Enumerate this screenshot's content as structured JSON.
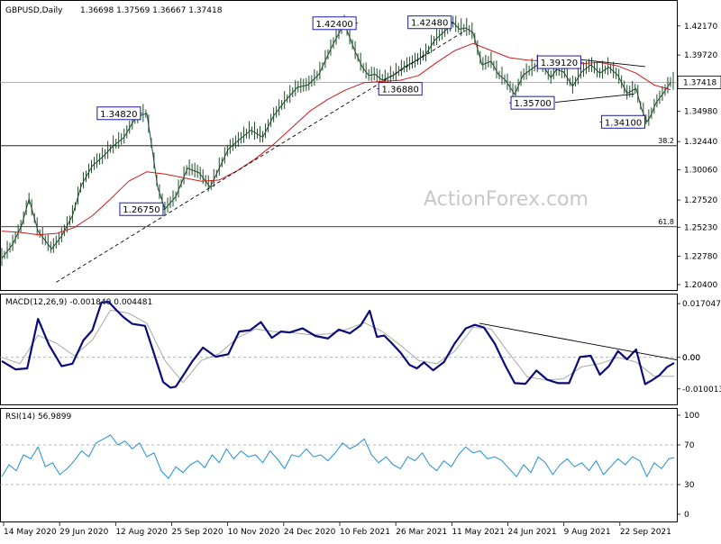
{
  "chart_data": [
    {
      "type": "line",
      "subtype": "candlestick-approximation",
      "title": "GBPUSD,Daily",
      "ohlc_text": "1.36698 1.37569 1.36667 1.37418",
      "ylim": [
        1.204,
        1.439
      ],
      "y_ticks": [
        "1.42170",
        "1.39720",
        "1.37418",
        "1.34980",
        "1.32440",
        "1.30060",
        "1.27520",
        "1.25230",
        "1.22780",
        "1.20400"
      ],
      "y_tick_values": [
        1.4217,
        1.3972,
        1.37418,
        1.3498,
        1.3244,
        1.3006,
        1.2752,
        1.2523,
        1.2278,
        1.204
      ],
      "current_price_label": "1.37418",
      "x_ticks": [
        "14 May 2020",
        "29 Jun 2020",
        "12 Aug 2020",
        "25 Sep 2020",
        "10 Nov 2020",
        "24 Dec 2020",
        "10 Feb 2021",
        "26 Mar 2021",
        "11 May 2021",
        "24 Jun 2021",
        "9 Aug 2021",
        "22 Sep 2021"
      ],
      "price_series": {
        "t": [
          0,
          12,
          22,
          30,
          40,
          55,
          66,
          78,
          88,
          100,
          112,
          122,
          135,
          148,
          160,
          166,
          172,
          180,
          192,
          205,
          218,
          230,
          240,
          250,
          262,
          275,
          288,
          300,
          312,
          326,
          338,
          350,
          364,
          378,
          390,
          398,
          405,
          412,
          420,
          432,
          444,
          456,
          468,
          478,
          490,
          498,
          505,
          512,
          520,
          530,
          540,
          548,
          556,
          566,
          575,
          584,
          595,
          606,
          612,
          620,
          630,
          640,
          650,
          660,
          670,
          680,
          690,
          700,
          706,
          712,
          716,
          722,
          730,
          738
        ],
        "v": [
          1.226,
          1.238,
          1.254,
          1.276,
          1.249,
          1.234,
          1.245,
          1.262,
          1.288,
          1.304,
          1.312,
          1.32,
          1.328,
          1.345,
          1.3482,
          1.318,
          1.286,
          1.2675,
          1.278,
          1.302,
          1.298,
          1.286,
          1.302,
          1.318,
          1.326,
          1.334,
          1.328,
          1.346,
          1.358,
          1.37,
          1.372,
          1.381,
          1.404,
          1.424,
          1.4,
          1.387,
          1.38,
          1.381,
          1.376,
          1.38,
          1.387,
          1.392,
          1.398,
          1.41,
          1.418,
          1.4248,
          1.419,
          1.42,
          1.416,
          1.389,
          1.392,
          1.381,
          1.376,
          1.364,
          1.38,
          1.385,
          1.391,
          1.378,
          1.385,
          1.383,
          1.371,
          1.383,
          1.389,
          1.382,
          1.387,
          1.38,
          1.365,
          1.369,
          1.352,
          1.341,
          1.346,
          1.357,
          1.365,
          1.3742
        ]
      },
      "ma_series": {
        "t": [
          0,
          20,
          40,
          60,
          80,
          100,
          120,
          140,
          160,
          180,
          200,
          220,
          240,
          260,
          280,
          300,
          320,
          340,
          360,
          380,
          400,
          420,
          440,
          460,
          480,
          500,
          520,
          540,
          560,
          580,
          600,
          620,
          640,
          660,
          680,
          700,
          720,
          738
        ],
        "v": [
          1.249,
          1.248,
          1.246,
          1.247,
          1.252,
          1.262,
          1.276,
          1.291,
          1.299,
          1.297,
          1.294,
          1.291,
          1.292,
          1.3,
          1.31,
          1.322,
          1.336,
          1.35,
          1.36,
          1.368,
          1.374,
          1.375,
          1.376,
          1.38,
          1.391,
          1.401,
          1.407,
          1.401,
          1.395,
          1.393,
          1.392,
          1.39,
          1.39,
          1.391,
          1.388,
          1.382,
          1.372,
          1.368
        ]
      },
      "callouts": [
        {
          "label": "1.42400",
          "t": 393,
          "v": 1.424,
          "side": "left"
        },
        {
          "label": "1.42480",
          "t": 498,
          "v": 1.4248,
          "side": "left"
        },
        {
          "label": "1.39120",
          "t": 641,
          "v": 1.3912,
          "side": "left"
        },
        {
          "label": "1.36880",
          "t": 414,
          "v": 1.3688,
          "side": "right"
        },
        {
          "label": "1.35700",
          "t": 560,
          "v": 1.357,
          "side": "right"
        },
        {
          "label": "1.34820",
          "t": 155,
          "v": 1.3482,
          "side": "left"
        },
        {
          "label": "1.34100",
          "t": 660,
          "v": 1.341,
          "side": "right"
        },
        {
          "label": "1.26750",
          "t": 180,
          "v": 1.2675,
          "side": "left"
        }
      ],
      "fib_levels": [
        {
          "label": "38.2",
          "value": 1.3209
        },
        {
          "label": "61.8",
          "value": 1.2527
        }
      ],
      "trend_lines": [
        {
          "style": "dashed",
          "from": {
            "t": 60,
            "v": 1.206
          },
          "to": {
            "t": 512,
            "v": 1.418
          }
        },
        {
          "style": "solid",
          "from": {
            "t": 625,
            "v": 1.3945
          },
          "to": {
            "t": 710,
            "v": 1.3875
          }
        },
        {
          "style": "solid",
          "from": {
            "t": 611,
            "v": 1.3575
          },
          "to": {
            "t": 698,
            "v": 1.3645
          }
        }
      ],
      "watermark": "ActionForex.com"
    },
    {
      "type": "line",
      "title": "MACD(12,26,9) -0.001840 0.004481",
      "ylim": [
        -0.0135,
        0.0185
      ],
      "y_ticks": [
        "0.017047",
        "0.00",
        "-0.010013"
      ],
      "y_tick_values": [
        0.017047,
        0.0,
        -0.010013
      ],
      "zero_line_labels": [
        "0.00",
        "0.00"
      ],
      "series": [
        {
          "role": "macd",
          "t": [
            0,
            15,
            28,
            40,
            52,
            66,
            78,
            90,
            100,
            110,
            118,
            126,
            134,
            144,
            158,
            168,
            178,
            186,
            192,
            200,
            210,
            222,
            236,
            250,
            262,
            274,
            286,
            298,
            308,
            318,
            332,
            346,
            360,
            372,
            384,
            396,
            406,
            414,
            422,
            430,
            440,
            450,
            458,
            466,
            476,
            488,
            500,
            512,
            522,
            532,
            544,
            556,
            566,
            578,
            590,
            602,
            614,
            626,
            638,
            650,
            660,
            670,
            680,
            690,
            700,
            710,
            718,
            726,
            734,
            742
          ],
          "v": [
            -0.0012,
            -0.0038,
            -0.0035,
            0.0122,
            0.004,
            -0.0028,
            -0.002,
            0.0054,
            0.0086,
            0.0174,
            0.0176,
            0.0151,
            0.0128,
            0.0106,
            0.01,
            0.0012,
            -0.0078,
            -0.0096,
            -0.0093,
            -0.0058,
            -0.0014,
            0.0031,
            0.0002,
            0.001,
            0.0082,
            0.0086,
            0.0112,
            0.0062,
            0.0082,
            0.0079,
            0.0092,
            0.0068,
            0.006,
            0.0088,
            0.0076,
            0.0101,
            0.0148,
            0.0065,
            0.0069,
            0.0046,
            0.0015,
            -0.0024,
            -0.0035,
            -0.0016,
            -0.0041,
            -0.0015,
            0.0045,
            0.0092,
            0.0103,
            0.0095,
            0.0044,
            -0.0028,
            -0.0082,
            -0.0084,
            -0.0042,
            -0.0071,
            -0.0082,
            -0.0082,
            0.0001,
            0.0005,
            -0.0055,
            -0.0028,
            0.002,
            -0.0006,
            0.0025,
            -0.0085,
            -0.0072,
            -0.0056,
            -0.0031,
            -0.0018
          ]
        },
        {
          "role": "signal",
          "t": [
            0,
            20,
            40,
            60,
            80,
            100,
            120,
            140,
            160,
            180,
            200,
            220,
            240,
            260,
            280,
            300,
            320,
            340,
            360,
            380,
            400,
            420,
            440,
            460,
            480,
            500,
            520,
            540,
            560,
            580,
            600,
            620,
            640,
            660,
            680,
            700,
            720,
            742
          ],
          "v": [
            0.0,
            -0.002,
            0.007,
            0.0045,
            0.0005,
            0.0055,
            0.015,
            0.014,
            0.0108,
            -0.001,
            -0.008,
            -0.001,
            0.0012,
            0.0062,
            0.009,
            0.0082,
            0.0078,
            0.0072,
            0.0074,
            0.0088,
            0.011,
            0.0082,
            0.0038,
            -0.001,
            -0.002,
            0.002,
            0.0095,
            0.009,
            0.0012,
            -0.0062,
            -0.0072,
            -0.0068,
            -0.003,
            -0.002,
            0.0,
            -0.0015,
            -0.006,
            -0.006
          ]
        }
      ],
      "trend_lines": [
        {
          "style": "solid",
          "from": {
            "t": 527,
            "v": 0.0108
          },
          "to": {
            "t": 745,
            "v": -0.0008
          }
        }
      ]
    },
    {
      "type": "line",
      "title": "RSI(14) 56.9899",
      "ylim": [
        0,
        100
      ],
      "y_ticks": [
        "100",
        "70",
        "30",
        "0"
      ],
      "y_tick_values": [
        100,
        70,
        30,
        0
      ],
      "levels": [
        70,
        30
      ],
      "series": [
        {
          "role": "rsi",
          "t": [
            0,
            8,
            16,
            24,
            32,
            40,
            48,
            56,
            64,
            72,
            80,
            88,
            96,
            104,
            112,
            120,
            128,
            136,
            144,
            152,
            160,
            168,
            176,
            184,
            192,
            200,
            208,
            216,
            224,
            232,
            240,
            248,
            256,
            264,
            272,
            280,
            288,
            296,
            304,
            312,
            320,
            328,
            336,
            344,
            352,
            360,
            368,
            376,
            384,
            392,
            400,
            408,
            416,
            424,
            432,
            440,
            448,
            456,
            464,
            472,
            480,
            488,
            496,
            504,
            512,
            520,
            528,
            536,
            544,
            552,
            560,
            568,
            576,
            584,
            592,
            600,
            608,
            616,
            624,
            632,
            640,
            648,
            656,
            664,
            672,
            680,
            688,
            696,
            704,
            712,
            720,
            728,
            736,
            742
          ],
          "v": [
            38,
            50,
            44,
            60,
            56,
            68,
            48,
            52,
            40,
            46,
            54,
            64,
            58,
            72,
            76,
            80,
            70,
            74,
            66,
            72,
            58,
            62,
            44,
            36,
            48,
            42,
            50,
            54,
            47,
            60,
            52,
            66,
            56,
            64,
            58,
            60,
            52,
            64,
            56,
            46,
            60,
            58,
            66,
            58,
            60,
            54,
            62,
            72,
            66,
            70,
            76,
            60,
            52,
            58,
            50,
            46,
            58,
            54,
            62,
            50,
            44,
            54,
            48,
            60,
            68,
            62,
            64,
            56,
            58,
            54,
            46,
            38,
            50,
            42,
            58,
            52,
            40,
            50,
            56,
            48,
            52,
            44,
            54,
            40,
            48,
            56,
            50,
            58,
            54,
            38,
            52,
            46,
            56,
            57
          ]
        }
      ]
    }
  ]
}
